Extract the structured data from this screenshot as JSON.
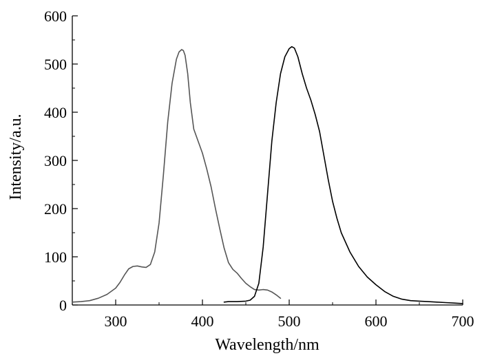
{
  "chart_data": {
    "type": "line",
    "title": "",
    "xlabel": "Wavelength/nm",
    "ylabel": "Intensity/a.u.",
    "xlim": [
      250,
      700
    ],
    "ylim": [
      0,
      600
    ],
    "x_major_ticks": [
      300,
      400,
      500,
      600,
      700
    ],
    "x_tick_labels": [
      "300",
      "400",
      "500",
      "600",
      "700"
    ],
    "y_major_ticks": [
      0,
      100,
      200,
      300,
      400,
      500,
      600
    ],
    "y_tick_labels": [
      "0",
      "100",
      "200",
      "300",
      "400",
      "500",
      "600"
    ],
    "grid": false,
    "legend": "none",
    "series": [
      {
        "color": "#555555",
        "x": [
          250,
          260,
          270,
          280,
          290,
          300,
          305,
          310,
          315,
          320,
          325,
          330,
          335,
          340,
          345,
          350,
          355,
          360,
          365,
          370,
          373,
          376,
          378,
          380,
          383,
          386,
          390,
          395,
          400,
          405,
          410,
          415,
          420,
          425,
          430,
          435,
          440,
          445,
          450,
          455,
          460,
          465,
          470,
          475,
          480,
          485,
          490
        ],
        "y": [
          6,
          7,
          9,
          14,
          22,
          35,
          47,
          62,
          75,
          80,
          81,
          79,
          78,
          84,
          110,
          170,
          270,
          380,
          460,
          510,
          525,
          530,
          528,
          518,
          480,
          420,
          365,
          340,
          315,
          282,
          245,
          200,
          158,
          118,
          88,
          74,
          66,
          55,
          45,
          38,
          32,
          31,
          32,
          31,
          27,
          21,
          14
        ]
      },
      {
        "color": "#000000",
        "x": [
          425,
          430,
          440,
          450,
          455,
          460,
          465,
          470,
          475,
          480,
          485,
          490,
          495,
          500,
          503,
          506,
          510,
          515,
          520,
          525,
          530,
          535,
          540,
          545,
          550,
          555,
          560,
          570,
          580,
          590,
          600,
          610,
          620,
          630,
          640,
          650,
          660,
          670,
          680,
          690,
          700
        ],
        "y": [
          6,
          7,
          7,
          8,
          10,
          18,
          45,
          120,
          230,
          340,
          420,
          480,
          515,
          532,
          536,
          533,
          515,
          480,
          450,
          425,
          395,
          360,
          310,
          260,
          215,
          180,
          150,
          110,
          80,
          58,
          42,
          28,
          18,
          12,
          9,
          8,
          7,
          6,
          5,
          4,
          3
        ]
      }
    ]
  }
}
